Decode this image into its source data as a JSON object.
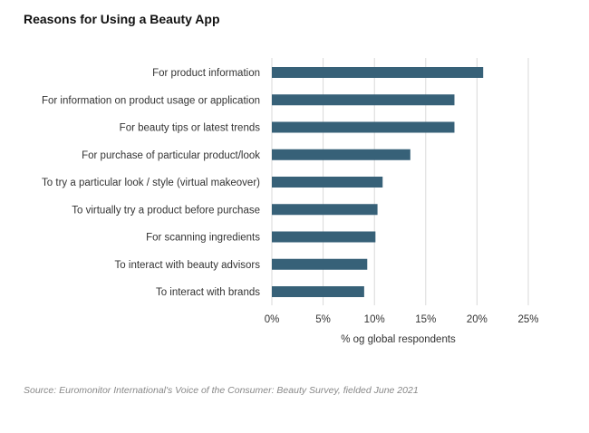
{
  "chart_data": {
    "type": "bar",
    "orientation": "horizontal",
    "title": "Reasons for Using a Beauty App",
    "categories": [
      "For product information",
      "For information on product usage or application",
      "For beauty tips or latest trends",
      "For purchase of particular product/look",
      "To try a particular look / style (virtual makeover)",
      "To virtually try a product before purchase",
      "For scanning ingredients",
      "To interact with beauty advisors",
      "To interact with brands"
    ],
    "values": [
      20.6,
      17.8,
      17.8,
      13.5,
      10.8,
      10.3,
      10.1,
      9.3,
      9.0
    ],
    "xlabel": "% og global respondents",
    "ylabel": "",
    "xlim": [
      0,
      25
    ],
    "ticks": [
      0,
      5,
      10,
      15,
      20,
      25
    ],
    "tick_labels": [
      "0%",
      "5%",
      "10%",
      "15%",
      "20%",
      "25%"
    ],
    "grid": "vertical",
    "bar_color": "#376178",
    "grid_color": "#d9d9d9"
  },
  "source": "Source: Euromonitor International's Voice of the Consumer: Beauty Survey, fielded June 2021"
}
